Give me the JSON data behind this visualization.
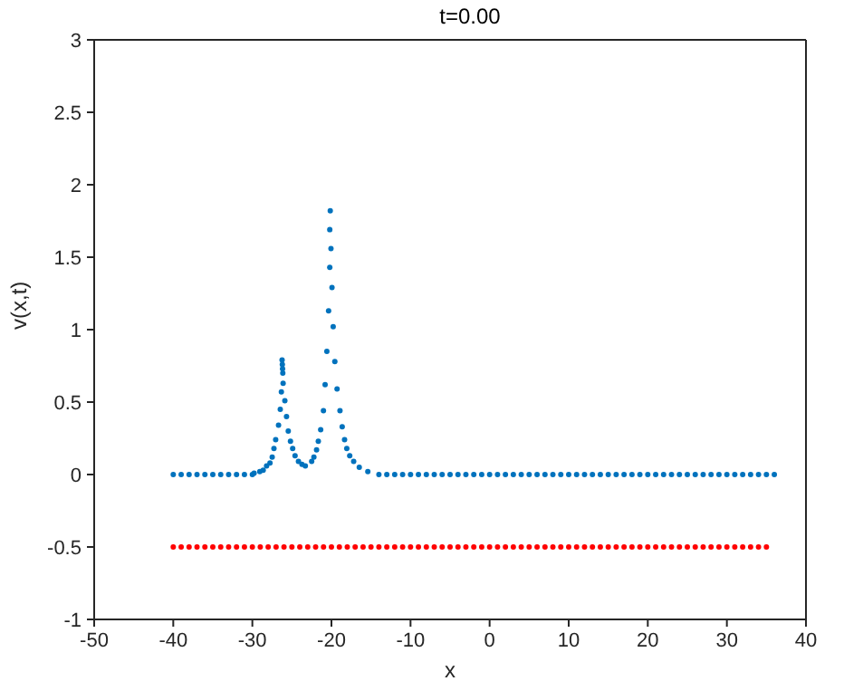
{
  "chart_data": {
    "type": "scatter",
    "title": "t=0.00",
    "xlabel": "x",
    "ylabel": "v(x,t)",
    "xlim": [
      -50,
      40
    ],
    "ylim": [
      -1,
      3
    ],
    "xticks": [
      -50,
      -40,
      -30,
      -20,
      -10,
      0,
      10,
      20,
      30,
      40
    ],
    "yticks": [
      -1,
      -0.5,
      0,
      0.5,
      1,
      1.5,
      2,
      2.5,
      3
    ],
    "grid": false,
    "marker": "circle",
    "series": [
      {
        "color": "#0072bd",
        "x": [
          -40,
          -39,
          -38,
          -37,
          -36,
          -35,
          -34,
          -33,
          -32,
          -31,
          -30,
          -29.78,
          -29.06,
          -28.63,
          -28.2,
          -27.77,
          -27.49,
          -27.27,
          -27.05,
          -26.69,
          -26.47,
          -26.33,
          -26.24,
          -26.21,
          -26.18,
          -26.15,
          -26.11,
          -25.89,
          -25.68,
          -25.46,
          -25.18,
          -24.9,
          -24.6,
          -24.17,
          -23.73,
          -23.3,
          -22.5,
          -22.22,
          -21.88,
          -21.66,
          -21.36,
          -21.01,
          -20.8,
          -20.58,
          -20.36,
          -20.21,
          -20.21,
          -20.15,
          -20.06,
          -19.93,
          -19.78,
          -19.57,
          -19.29,
          -18.92,
          -18.64,
          -18.34,
          -18.06,
          -17.69,
          -17.19,
          -16.48,
          -15.4,
          -14,
          -13,
          -12,
          -11,
          -10,
          -9,
          -8,
          -7,
          -6,
          -5,
          -4,
          -3,
          -2,
          -1,
          0,
          1,
          2,
          3,
          4,
          5,
          6,
          7,
          8,
          9,
          10,
          11,
          12,
          13,
          14,
          15,
          16,
          17,
          18,
          19,
          20,
          21,
          22,
          23,
          24,
          25,
          26,
          27,
          28,
          29,
          30,
          31,
          32,
          33,
          34,
          35,
          36
        ],
        "values": [
          0,
          0,
          0,
          0,
          0,
          0,
          0,
          0,
          0,
          0,
          0,
          0.01,
          0.02,
          0.03,
          0.06,
          0.08,
          0.12,
          0.18,
          0.24,
          0.34,
          0.45,
          0.57,
          0.79,
          0.76,
          0.73,
          0.7,
          0.63,
          0.51,
          0.4,
          0.3,
          0.23,
          0.18,
          0.13,
          0.09,
          0.07,
          0.06,
          0.09,
          0.12,
          0.17,
          0.23,
          0.31,
          0.44,
          0.62,
          0.85,
          1.13,
          1.43,
          1.69,
          1.82,
          1.56,
          1.29,
          1.02,
          0.78,
          0.59,
          0.44,
          0.33,
          0.24,
          0.18,
          0.13,
          0.09,
          0.05,
          0.02,
          0,
          0,
          0,
          0,
          0,
          0,
          0,
          0,
          0,
          0,
          0,
          0,
          0,
          0,
          0,
          0,
          0,
          0,
          0,
          0,
          0,
          0,
          0,
          0,
          0,
          0,
          0,
          0,
          0,
          0,
          0,
          0,
          0,
          0,
          0,
          0,
          0,
          0,
          0,
          0,
          0,
          0,
          0,
          0,
          0,
          0,
          0,
          0,
          0,
          0,
          0
        ]
      },
      {
        "color": "#ff0000",
        "x": [
          -40,
          -39,
          -38,
          -37,
          -36,
          -35,
          -34,
          -33,
          -32,
          -31,
          -30,
          -29,
          -28,
          -27,
          -26,
          -25,
          -24,
          -23,
          -22,
          -21,
          -20,
          -19,
          -18,
          -17,
          -16,
          -15,
          -14,
          -13,
          -12,
          -11,
          -10,
          -9,
          -8,
          -7,
          -6,
          -5,
          -4,
          -3,
          -2,
          -1,
          0,
          1,
          2,
          3,
          4,
          5,
          6,
          7,
          8,
          9,
          10,
          11,
          12,
          13,
          14,
          15,
          16,
          17,
          18,
          19,
          20,
          21,
          22,
          23,
          24,
          25,
          26,
          27,
          28,
          29,
          30,
          31,
          32,
          33,
          34,
          35
        ],
        "values": [
          -0.5,
          -0.5,
          -0.5,
          -0.5,
          -0.5,
          -0.5,
          -0.5,
          -0.5,
          -0.5,
          -0.5,
          -0.5,
          -0.5,
          -0.5,
          -0.5,
          -0.5,
          -0.5,
          -0.5,
          -0.5,
          -0.5,
          -0.5,
          -0.5,
          -0.5,
          -0.5,
          -0.5,
          -0.5,
          -0.5,
          -0.5,
          -0.5,
          -0.5,
          -0.5,
          -0.5,
          -0.5,
          -0.5,
          -0.5,
          -0.5,
          -0.5,
          -0.5,
          -0.5,
          -0.5,
          -0.5,
          -0.5,
          -0.5,
          -0.5,
          -0.5,
          -0.5,
          -0.5,
          -0.5,
          -0.5,
          -0.5,
          -0.5,
          -0.5,
          -0.5,
          -0.5,
          -0.5,
          -0.5,
          -0.5,
          -0.5,
          -0.5,
          -0.5,
          -0.5,
          -0.5,
          -0.5,
          -0.5,
          -0.5,
          -0.5,
          -0.5,
          -0.5,
          -0.5,
          -0.5,
          -0.5,
          -0.5,
          -0.5,
          -0.5,
          -0.5,
          -0.5,
          -0.5
        ]
      }
    ]
  }
}
